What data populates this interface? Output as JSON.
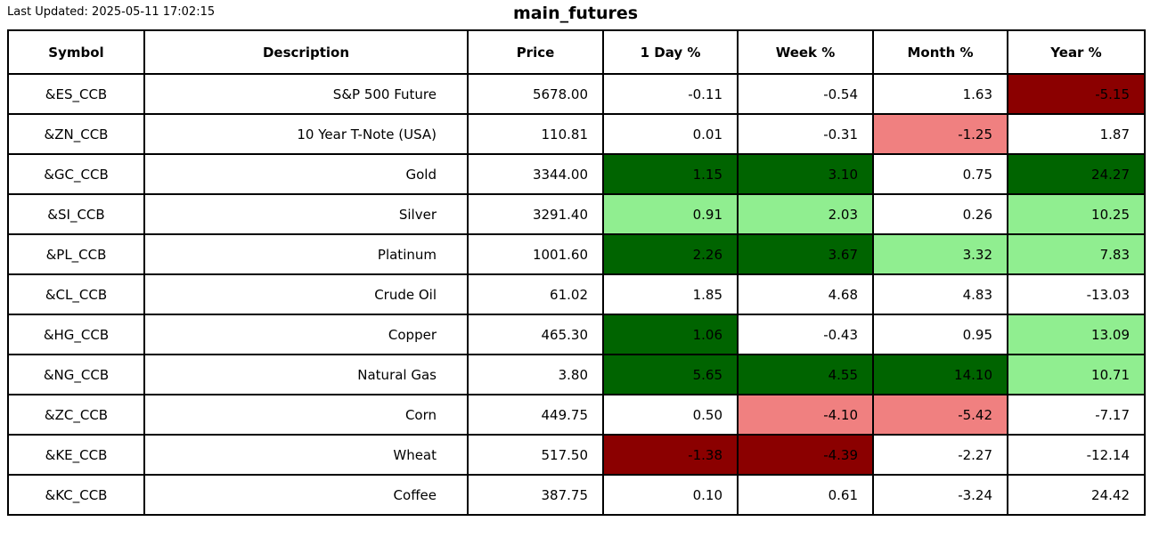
{
  "chart_data": {
    "type": "table",
    "title": "main_futures",
    "last_updated": "Last Updated: 2025-05-11 17:02:15",
    "columns": [
      "Symbol",
      "Description",
      "Price",
      "1 Day %",
      "Week %",
      "Month %",
      "Year %"
    ],
    "color_legend": {
      "dark_green": "#006400",
      "light_green": "#90EE90",
      "dark_red": "#8B0000",
      "light_red": "#F08080",
      "white": "#FFFFFF",
      "border": "#000000",
      "text": "#000000"
    },
    "rows": [
      {
        "symbol": "&ES_CCB",
        "description": "S&P 500 Future",
        "price": "5678.00",
        "pct": [
          {
            "v": "-0.11",
            "bg": "white"
          },
          {
            "v": "-0.54",
            "bg": "white"
          },
          {
            "v": "1.63",
            "bg": "white"
          },
          {
            "v": "-5.15",
            "bg": "dark_red"
          }
        ]
      },
      {
        "symbol": "&ZN_CCB",
        "description": "10 Year T-Note (USA)",
        "price": "110.81",
        "pct": [
          {
            "v": "0.01",
            "bg": "white"
          },
          {
            "v": "-0.31",
            "bg": "white"
          },
          {
            "v": "-1.25",
            "bg": "light_red"
          },
          {
            "v": "1.87",
            "bg": "white"
          }
        ]
      },
      {
        "symbol": "&GC_CCB",
        "description": "Gold",
        "price": "3344.00",
        "pct": [
          {
            "v": "1.15",
            "bg": "dark_green"
          },
          {
            "v": "3.10",
            "bg": "dark_green"
          },
          {
            "v": "0.75",
            "bg": "white"
          },
          {
            "v": "24.27",
            "bg": "dark_green"
          }
        ]
      },
      {
        "symbol": "&SI_CCB",
        "description": "Silver",
        "price": "3291.40",
        "pct": [
          {
            "v": "0.91",
            "bg": "light_green"
          },
          {
            "v": "2.03",
            "bg": "light_green"
          },
          {
            "v": "0.26",
            "bg": "white"
          },
          {
            "v": "10.25",
            "bg": "light_green"
          }
        ]
      },
      {
        "symbol": "&PL_CCB",
        "description": "Platinum",
        "price": "1001.60",
        "pct": [
          {
            "v": "2.26",
            "bg": "dark_green"
          },
          {
            "v": "3.67",
            "bg": "dark_green"
          },
          {
            "v": "3.32",
            "bg": "light_green"
          },
          {
            "v": "7.83",
            "bg": "light_green"
          }
        ]
      },
      {
        "symbol": "&CL_CCB",
        "description": "Crude Oil",
        "price": "61.02",
        "pct": [
          {
            "v": "1.85",
            "bg": "white"
          },
          {
            "v": "4.68",
            "bg": "white"
          },
          {
            "v": "4.83",
            "bg": "white"
          },
          {
            "v": "-13.03",
            "bg": "white"
          }
        ]
      },
      {
        "symbol": "&HG_CCB",
        "description": "Copper",
        "price": "465.30",
        "pct": [
          {
            "v": "1.06",
            "bg": "dark_green"
          },
          {
            "v": "-0.43",
            "bg": "white"
          },
          {
            "v": "0.95",
            "bg": "white"
          },
          {
            "v": "13.09",
            "bg": "light_green"
          }
        ]
      },
      {
        "symbol": "&NG_CCB",
        "description": "Natural Gas",
        "price": "3.80",
        "pct": [
          {
            "v": "5.65",
            "bg": "dark_green"
          },
          {
            "v": "4.55",
            "bg": "dark_green"
          },
          {
            "v": "14.10",
            "bg": "dark_green"
          },
          {
            "v": "10.71",
            "bg": "light_green"
          }
        ]
      },
      {
        "symbol": "&ZC_CCB",
        "description": "Corn",
        "price": "449.75",
        "pct": [
          {
            "v": "0.50",
            "bg": "white"
          },
          {
            "v": "-4.10",
            "bg": "light_red"
          },
          {
            "v": "-5.42",
            "bg": "light_red"
          },
          {
            "v": "-7.17",
            "bg": "white"
          }
        ]
      },
      {
        "symbol": "&KE_CCB",
        "description": "Wheat",
        "price": "517.50",
        "pct": [
          {
            "v": "-1.38",
            "bg": "dark_red"
          },
          {
            "v": "-4.39",
            "bg": "dark_red"
          },
          {
            "v": "-2.27",
            "bg": "white"
          },
          {
            "v": "-12.14",
            "bg": "white"
          }
        ]
      },
      {
        "symbol": "&KC_CCB",
        "description": "Coffee",
        "price": "387.75",
        "pct": [
          {
            "v": "0.10",
            "bg": "white"
          },
          {
            "v": "0.61",
            "bg": "white"
          },
          {
            "v": "-3.24",
            "bg": "white"
          },
          {
            "v": "24.42",
            "bg": "white"
          }
        ]
      }
    ]
  }
}
